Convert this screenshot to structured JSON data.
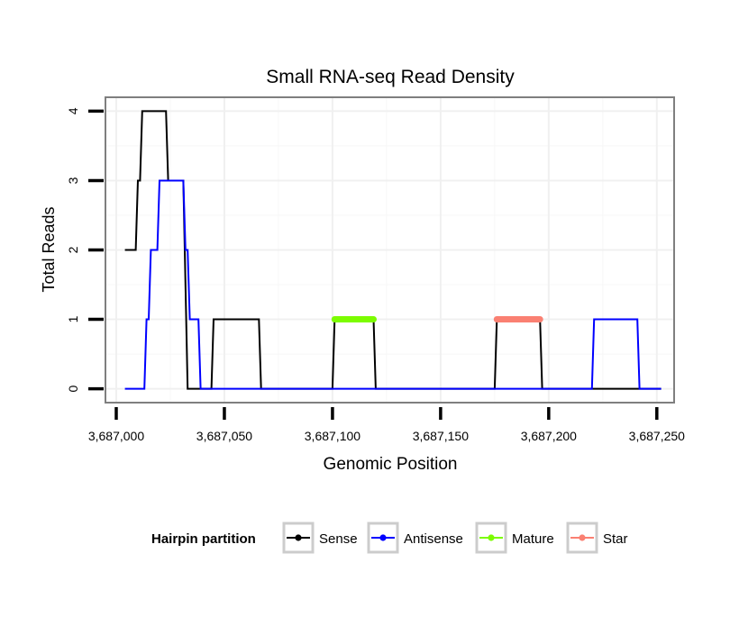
{
  "chart_data": {
    "type": "line",
    "title": "Small RNA-seq Read Density",
    "xlabel": "Genomic Position",
    "ylabel": "Total Reads",
    "xlim": [
      3686995,
      3687258
    ],
    "ylim": [
      -0.2,
      4.2
    ],
    "xticks": [
      3687000,
      3687050,
      3687100,
      3687150,
      3687200,
      3687250
    ],
    "xtick_labels": [
      "3,687,000",
      "3,687,050",
      "3,687,100",
      "3,687,150",
      "3,687,200",
      "3,687,250"
    ],
    "yticks": [
      0,
      1,
      2,
      3,
      4
    ],
    "ytick_labels": [
      "0",
      "1",
      "2",
      "3",
      "4"
    ],
    "grid": true,
    "legend": {
      "title": "Hairpin partition",
      "placement": "bottom",
      "items": [
        {
          "label": "Sense",
          "color": "#000000"
        },
        {
          "label": "Antisense",
          "color": "#0000ff"
        },
        {
          "label": "Mature",
          "color": "#7cfc00"
        },
        {
          "label": "Star",
          "color": "#fa8072"
        }
      ]
    },
    "series": [
      {
        "name": "Sense",
        "color": "#000000",
        "width": "thin",
        "x": [
          3687004,
          3687009,
          3687010,
          3687011,
          3687012,
          3687013,
          3687023,
          3687024,
          3687030,
          3687031,
          3687033,
          3687044,
          3687045,
          3687066,
          3687067,
          3687100,
          3687101,
          3687119,
          3687120,
          3687175,
          3687176,
          3687196,
          3687197,
          3687252
        ],
        "y": [
          2,
          2,
          3,
          3,
          4,
          4,
          4,
          3,
          3,
          3,
          0,
          0,
          1,
          1,
          0,
          0,
          1,
          1,
          0,
          0,
          1,
          1,
          0,
          0
        ]
      },
      {
        "name": "Antisense",
        "color": "#0000ff",
        "width": "thin",
        "x": [
          3687004,
          3687013,
          3687014,
          3687015,
          3687016,
          3687018,
          3687019,
          3687020,
          3687022,
          3687031,
          3687032,
          3687033,
          3687034,
          3687035,
          3687038,
          3687039,
          3687220,
          3687221,
          3687241,
          3687242,
          3687252
        ],
        "y": [
          0,
          0,
          1,
          1,
          2,
          2,
          2,
          3,
          3,
          3,
          2,
          2,
          1,
          1,
          1,
          0,
          0,
          1,
          1,
          0,
          0
        ]
      },
      {
        "name": "Mature",
        "color": "#7cfc00",
        "width": "thick",
        "x": [
          3687101,
          3687119
        ],
        "y": [
          1,
          1
        ]
      },
      {
        "name": "Star",
        "color": "#fa8072",
        "width": "thick",
        "x": [
          3687176,
          3687196
        ],
        "y": [
          1,
          1
        ]
      }
    ]
  }
}
